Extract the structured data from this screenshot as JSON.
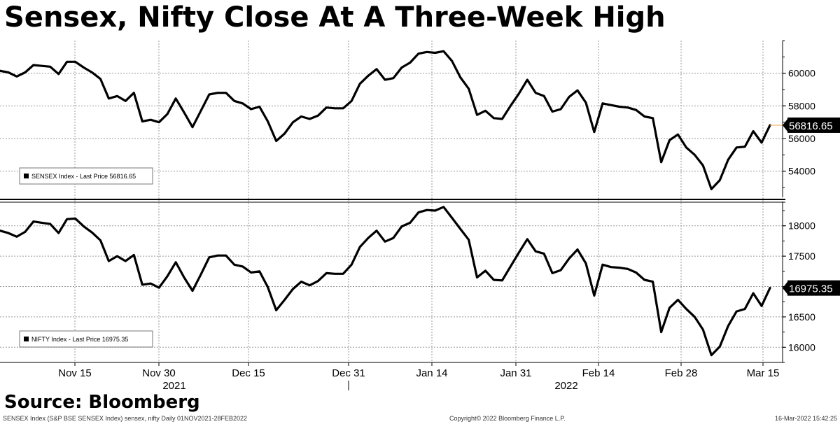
{
  "title": "Sensex, Nifty Close At A Three-Week High",
  "source": "Source: Bloomberg",
  "footer": {
    "left": "SENSEX Index (S&P BSE SENSEX Index) sensex, nifty  Daily 01NOV2021-28FEB2022",
    "center": "Copyright© 2022 Bloomberg Finance L.P.",
    "right": "16-Mar-2022 15:42:25"
  },
  "colors": {
    "line": "#000000",
    "grid": "#9a9a9a",
    "last_price_tick": "#e8a040"
  },
  "x_axis": {
    "ticks": [
      "Nov 15",
      "Nov 30",
      "Dec 15",
      "Dec 31",
      "Jan 14",
      "Jan 31",
      "Feb 14",
      "Feb 28",
      "Mar 15"
    ],
    "years": [
      "2021",
      "2022"
    ]
  },
  "chart_data": [
    {
      "type": "line",
      "legend": "SENSEX Index - Last Price 56816.65",
      "last_value_label": "56816.65",
      "last_value": 56816.65,
      "ylim": [
        52400,
        62000
      ],
      "yticks": [
        54000,
        56000,
        58000,
        60000
      ],
      "grid": true,
      "legend_position": "bottom-left",
      "series": [
        {
          "values": [
            60150,
            60050,
            59800,
            60050,
            60500,
            60450,
            60400,
            59950,
            60700,
            60700,
            60350,
            60050,
            59650,
            58450,
            58600,
            58300,
            58800,
            57050,
            57150,
            57000,
            57500,
            58450,
            57600,
            56700,
            57700,
            58700,
            58800,
            58800,
            58300,
            58150,
            57800,
            57950,
            57050,
            55850,
            56300,
            57000,
            57350,
            57200,
            57400,
            57900,
            57850,
            57850,
            58300,
            59350,
            59850,
            60250,
            59600,
            59700,
            60350,
            60650,
            61200,
            61300,
            61250,
            61350,
            60750,
            59750,
            59050,
            57450,
            57700,
            57250,
            57200,
            58000,
            58750,
            59600,
            58800,
            58600,
            57650,
            57800,
            58550,
            58950,
            58200,
            56400,
            58150,
            58050,
            57950,
            57900,
            57750,
            57350,
            57250,
            54550,
            55900,
            56250,
            55450,
            55000,
            54350,
            52900,
            53450,
            54700,
            55450,
            55500,
            56450,
            55750,
            56816.65
          ]
        }
      ]
    },
    {
      "type": "line",
      "legend": "NIFTY Index - Last Price 16975.35",
      "last_value_label": "16975.35",
      "last_value": 16975.35,
      "ylim": [
        15750,
        18400
      ],
      "yticks": [
        16000,
        16500,
        17000,
        17500,
        18000
      ],
      "grid": true,
      "legend_position": "bottom-left",
      "series": [
        {
          "values": [
            17920,
            17880,
            17820,
            17900,
            18070,
            18050,
            18030,
            17880,
            18110,
            18120,
            17990,
            17890,
            17760,
            17420,
            17500,
            17420,
            17520,
            17030,
            17050,
            16980,
            17170,
            17400,
            17150,
            16930,
            17200,
            17480,
            17510,
            17510,
            17360,
            17330,
            17230,
            17250,
            16990,
            16610,
            16780,
            16960,
            17080,
            17020,
            17090,
            17220,
            17210,
            17210,
            17360,
            17650,
            17800,
            17920,
            17740,
            17800,
            17990,
            18050,
            18220,
            18260,
            18250,
            18310,
            18130,
            17950,
            17770,
            17150,
            17260,
            17110,
            17100,
            17330,
            17560,
            17780,
            17580,
            17540,
            17220,
            17270,
            17460,
            17610,
            17380,
            16850,
            17360,
            17320,
            17310,
            17290,
            17230,
            17110,
            17080,
            16250,
            16650,
            16780,
            16630,
            16500,
            16290,
            15870,
            16010,
            16350,
            16590,
            16630,
            16890,
            16680,
            16975.35
          ]
        }
      ]
    }
  ]
}
